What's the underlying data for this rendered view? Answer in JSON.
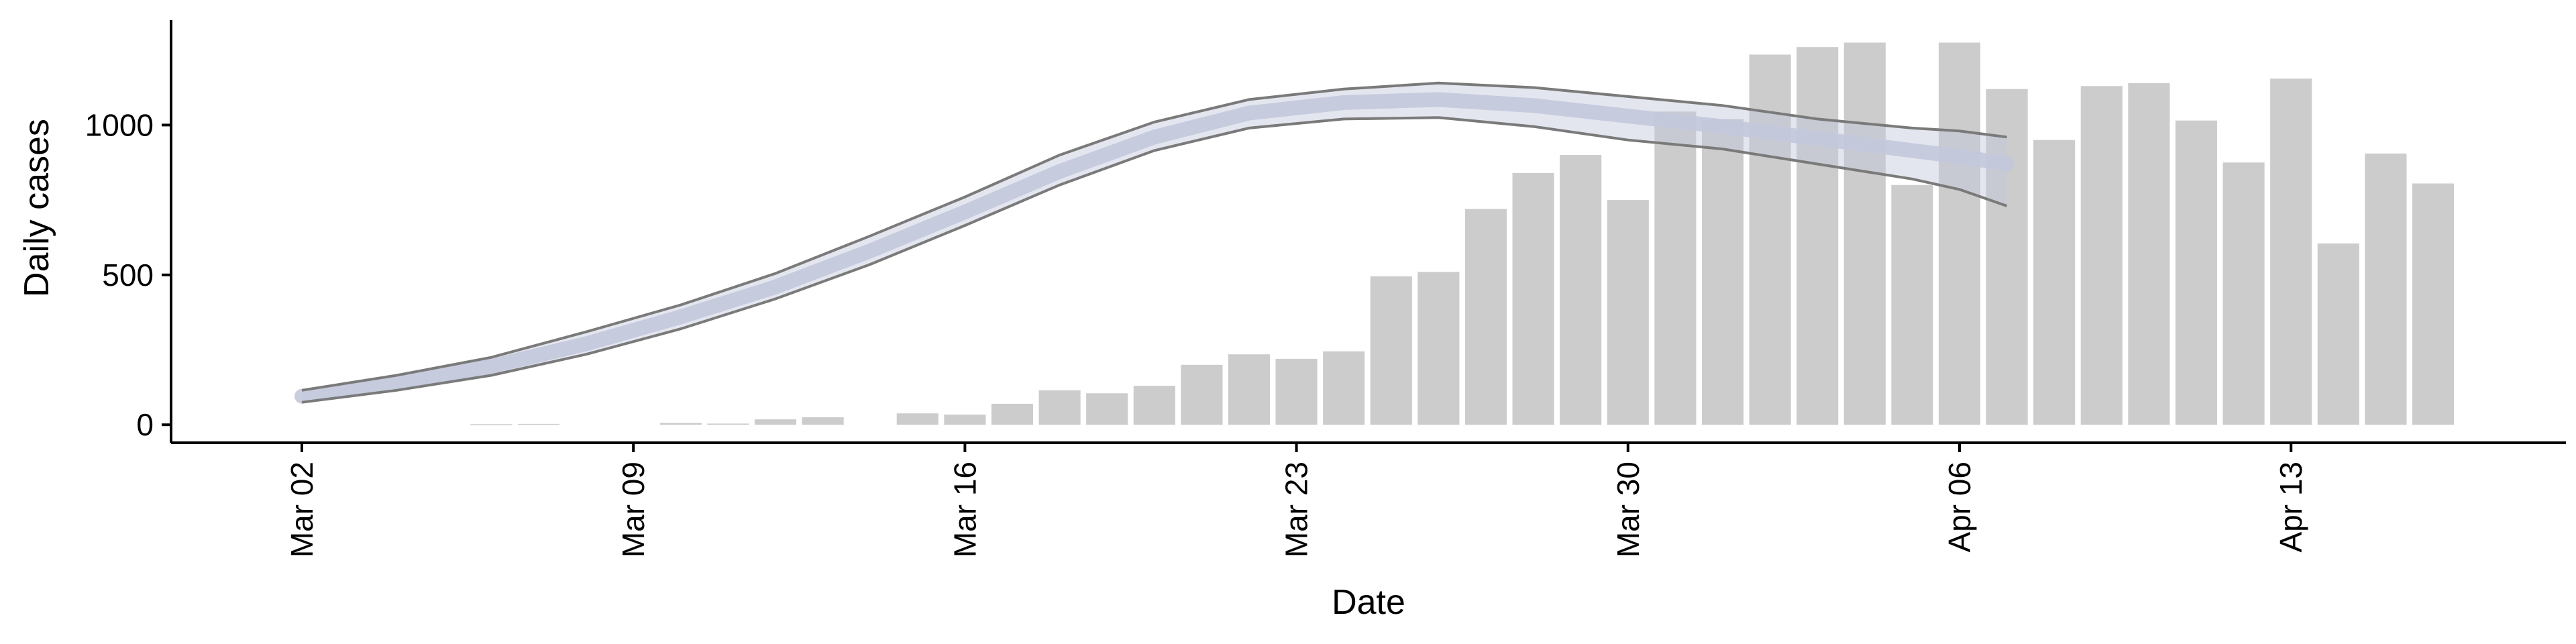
{
  "chart_data": {
    "type": "bar",
    "xlabel": "Date",
    "ylabel": "Daily cases",
    "ylim": [
      -60,
      1350
    ],
    "yticks": [
      0,
      500,
      1000
    ],
    "xticks": [
      {
        "label": "Mar 02",
        "day": 0
      },
      {
        "label": "Mar 09",
        "day": 7
      },
      {
        "label": "Mar 16",
        "day": 14
      },
      {
        "label": "Mar 23",
        "day": 21
      },
      {
        "label": "Mar 30",
        "day": 28
      },
      {
        "label": "Apr 06",
        "day": 35
      },
      {
        "label": "Apr 13",
        "day": 42
      }
    ],
    "bars": [
      {
        "day": 4,
        "value": 2
      },
      {
        "day": 5,
        "value": 3
      },
      {
        "day": 8,
        "value": 6
      },
      {
        "day": 9,
        "value": 4
      },
      {
        "day": 10,
        "value": 18
      },
      {
        "day": 11,
        "value": 25
      },
      {
        "day": 13,
        "value": 38
      },
      {
        "day": 14,
        "value": 34
      },
      {
        "day": 15,
        "value": 70
      },
      {
        "day": 16,
        "value": 115
      },
      {
        "day": 17,
        "value": 105
      },
      {
        "day": 18,
        "value": 130
      },
      {
        "day": 19,
        "value": 200
      },
      {
        "day": 20,
        "value": 235
      },
      {
        "day": 21,
        "value": 220
      },
      {
        "day": 22,
        "value": 245
      },
      {
        "day": 23,
        "value": 495
      },
      {
        "day": 24,
        "value": 510
      },
      {
        "day": 25,
        "value": 720
      },
      {
        "day": 26,
        "value": 840
      },
      {
        "day": 27,
        "value": 900
      },
      {
        "day": 28,
        "value": 750
      },
      {
        "day": 29,
        "value": 1045
      },
      {
        "day": 30,
        "value": 1020
      },
      {
        "day": 31,
        "value": 1235
      },
      {
        "day": 32,
        "value": 1260
      },
      {
        "day": 33,
        "value": 1275
      },
      {
        "day": 34,
        "value": 800
      },
      {
        "day": 35,
        "value": 1275
      },
      {
        "day": 36,
        "value": 1120
      },
      {
        "day": 37,
        "value": 950
      },
      {
        "day": 38,
        "value": 1130
      },
      {
        "day": 39,
        "value": 1140
      },
      {
        "day": 40,
        "value": 1015
      },
      {
        "day": 41,
        "value": 875
      },
      {
        "day": 42,
        "value": 1155
      },
      {
        "day": 43,
        "value": 605
      },
      {
        "day": 44,
        "value": 905
      },
      {
        "day": 45,
        "value": 805
      }
    ],
    "estimate": {
      "days": [
        0,
        2,
        4,
        6,
        8,
        10,
        12,
        14,
        16,
        18,
        20,
        22,
        24,
        26,
        28,
        30,
        32,
        34,
        35,
        36
      ],
      "upper": [
        115,
        165,
        225,
        310,
        400,
        505,
        630,
        760,
        900,
        1010,
        1085,
        1120,
        1140,
        1125,
        1095,
        1065,
        1020,
        990,
        980,
        960
      ],
      "mid": [
        95,
        140,
        195,
        270,
        360,
        460,
        580,
        710,
        845,
        960,
        1040,
        1075,
        1085,
        1065,
        1030,
        995,
        955,
        915,
        895,
        870
      ],
      "lower": [
        75,
        115,
        165,
        235,
        320,
        420,
        535,
        665,
        800,
        915,
        990,
        1020,
        1025,
        995,
        950,
        920,
        870,
        820,
        785,
        730
      ],
      "band_color": "#c3c8dc",
      "line_color": "#7a7a7a"
    },
    "bar_color": "#cccccc",
    "grid": false
  }
}
